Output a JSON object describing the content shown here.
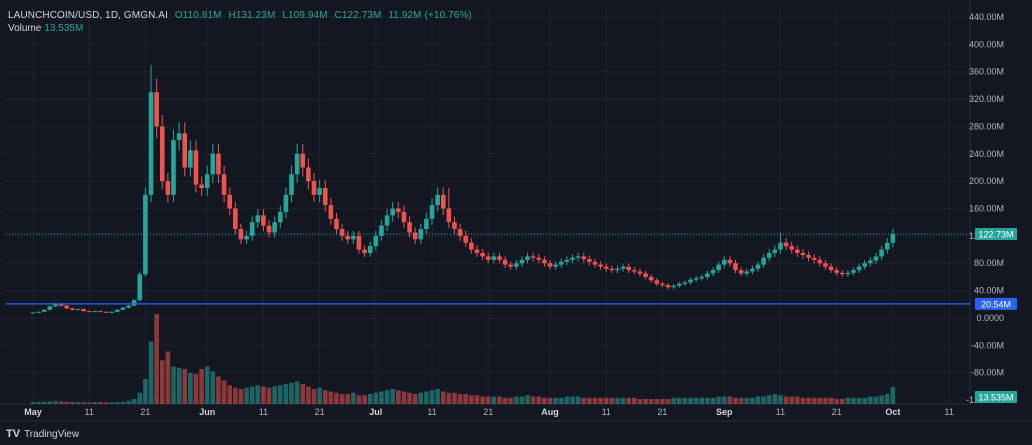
{
  "header": {
    "symbol": "LAUNCHCOIN/USD, 1D, GMGN.AI",
    "open": "O110.81M",
    "high": "H131.23M",
    "low": "L109.94M",
    "close": "C122.73M",
    "change": "11.92M (+10.76%)"
  },
  "volume_legend": {
    "label": "Volume",
    "value": "13.535M"
  },
  "branding": {
    "logo": "TV",
    "name": "TradingView"
  },
  "colors": {
    "up": "#26a69a",
    "down": "#ef5350",
    "background": "#131722",
    "text": "#d1d4dc",
    "grid": "#1e222d",
    "level_line": "#2962ff"
  },
  "chart_data": {
    "type": "candlestick",
    "y_axis": {
      "ticks": [
        440,
        400,
        360,
        320,
        280,
        240,
        200,
        160,
        120,
        80,
        40,
        0,
        -40,
        -80,
        -120
      ],
      "labels": [
        "440.00M",
        "400.00M",
        "360.00M",
        "320.00M",
        "280.00M",
        "240.00M",
        "200.00M",
        "160.00M",
        "120.00M",
        "80.00M",
        "40.00M",
        "0.0000",
        "-40.00M",
        "-80.00M",
        "-120.00M"
      ],
      "unit": "M"
    },
    "x_axis": {
      "ticks": [
        "May",
        "11",
        "21",
        "Jun",
        "11",
        "21",
        "Jul",
        "11",
        "21",
        "Aug",
        "11",
        "21",
        "Sep",
        "11",
        "21",
        "Oct",
        "11"
      ],
      "tick_days": [
        0,
        10,
        20,
        31,
        41,
        51,
        61,
        71,
        81,
        92,
        102,
        112,
        123,
        133,
        143,
        153,
        163
      ],
      "bold": [
        "May",
        "Jun",
        "Jul",
        "Aug",
        "Sep",
        "Oct"
      ]
    },
    "price_label": {
      "value": 122.73,
      "text": "122.73M",
      "color": "#26a69a"
    },
    "level_line": {
      "value": 20.54,
      "text": "20.54M",
      "color": "#2962ff"
    },
    "volume_label": {
      "text": "13.535M",
      "color": "#26a69a"
    },
    "series": {
      "close": [
        8,
        9,
        12,
        17,
        21,
        18,
        14,
        12,
        13,
        10,
        9,
        10,
        9,
        8,
        9,
        12,
        15,
        18,
        26,
        64,
        180,
        330,
        280,
        200,
        180,
        260,
        270,
        220,
        245,
        195,
        190,
        210,
        240,
        210,
        180,
        160,
        130,
        115,
        120,
        140,
        150,
        135,
        125,
        140,
        155,
        180,
        210,
        240,
        220,
        200,
        180,
        190,
        165,
        145,
        130,
        120,
        115,
        120,
        100,
        95,
        105,
        120,
        135,
        150,
        160,
        155,
        140,
        125,
        115,
        130,
        145,
        165,
        180,
        160,
        140,
        130,
        120,
        110,
        100,
        95,
        90,
        85,
        90,
        85,
        78,
        75,
        80,
        85,
        90,
        88,
        85,
        80,
        75,
        78,
        82,
        85,
        88,
        90,
        86,
        82,
        78,
        75,
        72,
        70,
        72,
        75,
        70,
        68,
        65,
        60,
        55,
        50,
        48,
        45,
        47,
        50,
        52,
        56,
        58,
        60,
        65,
        70,
        78,
        85,
        80,
        70,
        65,
        68,
        72,
        78,
        88,
        95,
        100,
        110,
        105,
        100,
        95,
        92,
        88,
        85,
        80,
        75,
        70,
        66,
        64,
        66,
        70,
        75,
        80,
        84,
        90,
        100,
        110,
        122.73
      ],
      "volume": [
        1.5,
        1.7,
        1.8,
        2.0,
        2.2,
        2.0,
        1.9,
        1.6,
        1.5,
        1.4,
        1.3,
        1.5,
        1.6,
        1.4,
        1.3,
        1.5,
        1.8,
        2.5,
        4,
        9,
        20,
        50,
        72,
        35,
        42,
        30,
        29,
        28,
        25,
        24,
        28,
        30,
        26,
        22,
        19,
        15,
        13,
        12,
        13,
        14,
        15,
        14,
        13,
        14,
        15,
        16,
        17,
        18,
        16,
        14,
        12,
        13,
        11,
        10,
        9,
        8,
        8,
        9,
        7,
        7,
        8,
        9,
        10,
        11,
        12,
        11,
        10,
        9,
        8,
        9,
        10,
        11,
        12,
        10,
        9,
        9,
        8,
        8,
        7,
        7,
        6,
        6,
        6,
        6,
        5,
        5,
        6,
        6,
        7,
        6,
        6,
        5,
        5,
        5,
        5,
        6,
        6,
        6,
        5,
        5,
        5,
        5,
        5,
        5,
        5,
        5,
        5,
        5,
        4,
        4,
        4,
        4,
        4,
        4,
        5,
        5,
        5,
        5,
        5,
        5,
        5,
        5,
        6,
        6,
        6,
        5,
        5,
        5,
        5,
        6,
        6,
        7,
        8,
        7,
        6,
        6,
        6,
        5,
        5,
        5,
        5,
        5,
        5,
        4,
        4,
        5,
        5,
        5,
        5,
        6,
        6,
        7,
        8,
        13.535
      ],
      "spikes": {
        "21": 370,
        "47": 255,
        "133": 125,
        "74": 190
      }
    }
  }
}
